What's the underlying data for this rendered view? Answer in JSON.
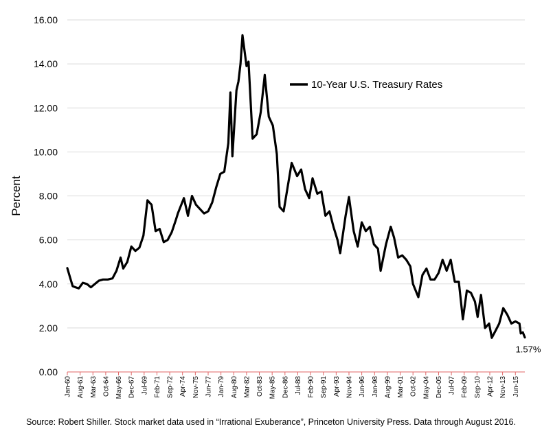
{
  "chart_data": {
    "type": "line",
    "ylabel": "Percent",
    "ylim": [
      0,
      16
    ],
    "y_ticks": [
      "0.00",
      "2.00",
      "4.00",
      "6.00",
      "8.00",
      "10.00",
      "12.00",
      "14.00",
      "16.00"
    ],
    "y_tick_values": [
      0,
      2,
      4,
      6,
      8,
      10,
      12,
      14,
      16
    ],
    "x_range": [
      "1960-01",
      "2016-08"
    ],
    "x_tick_labels": [
      "Jan-60",
      "Aug-61",
      "Mar-63",
      "Oct-64",
      "May-66",
      "Dec-67",
      "Jul-69",
      "Feb-71",
      "Sep-72",
      "Apr-74",
      "Nov-75",
      "Jun-77",
      "Jan-79",
      "Aug-80",
      "Mar-82",
      "Oct-83",
      "May-85",
      "Dec-86",
      "Jul-88",
      "Feb-90",
      "Sep-91",
      "Apr-93",
      "Nov-94",
      "Jun-96",
      "Jan-98",
      "Aug-99",
      "Mar-01",
      "Oct-02",
      "May-04",
      "Dec-05",
      "Jul-07",
      "Feb-09",
      "Sep-10",
      "Apr-12",
      "Nov-13",
      "Jun-15"
    ],
    "x_tick_dates": [
      "1960-01",
      "1961-08",
      "1963-03",
      "1964-10",
      "1966-05",
      "1967-12",
      "1969-07",
      "1971-02",
      "1972-09",
      "1974-04",
      "1975-11",
      "1977-06",
      "1979-01",
      "1980-08",
      "1982-03",
      "1983-10",
      "1985-05",
      "1986-12",
      "1988-07",
      "1990-02",
      "1991-09",
      "1993-04",
      "1994-11",
      "1996-06",
      "1998-01",
      "1999-08",
      "2001-03",
      "2002-10",
      "2004-05",
      "2005-12",
      "2007-07",
      "2009-02",
      "2010-09",
      "2012-04",
      "2013-11",
      "2015-06"
    ],
    "grid": true,
    "legend_position": "top-right",
    "colors": {
      "line": "#000000",
      "x_axis": "#e06666",
      "grid": "#d9d9d9"
    },
    "series": [
      {
        "name": "10-Year U.S. Treasury Rates",
        "x": [
          "1960-01",
          "1960-05",
          "1960-09",
          "1961-01",
          "1961-06",
          "1961-12",
          "1962-06",
          "1962-12",
          "1963-06",
          "1963-12",
          "1964-06",
          "1965-01",
          "1965-08",
          "1966-02",
          "1966-08",
          "1966-12",
          "1967-06",
          "1967-12",
          "1968-06",
          "1968-12",
          "1969-06",
          "1969-12",
          "1970-06",
          "1970-12",
          "1971-06",
          "1971-12",
          "1972-06",
          "1972-12",
          "1973-06",
          "1973-09",
          "1974-06",
          "1974-12",
          "1975-06",
          "1975-12",
          "1976-06",
          "1976-12",
          "1977-06",
          "1977-12",
          "1978-06",
          "1978-12",
          "1979-06",
          "1979-12",
          "1980-03",
          "1980-06",
          "1980-12",
          "1981-03",
          "1981-06",
          "1981-09",
          "1982-03",
          "1982-06",
          "1982-12",
          "1983-06",
          "1983-12",
          "1984-06",
          "1984-12",
          "1985-06",
          "1985-12",
          "1986-04",
          "1986-10",
          "1987-04",
          "1987-10",
          "1988-06",
          "1988-12",
          "1989-06",
          "1989-12",
          "1990-05",
          "1990-12",
          "1991-06",
          "1991-12",
          "1992-06",
          "1992-12",
          "1993-06",
          "1993-10",
          "1994-06",
          "1994-11",
          "1995-06",
          "1995-12",
          "1996-06",
          "1996-12",
          "1997-06",
          "1997-12",
          "1998-06",
          "1998-10",
          "1999-06",
          "2000-01",
          "2000-06",
          "2000-12",
          "2001-06",
          "2001-12",
          "2002-06",
          "2002-10",
          "2003-06",
          "2003-12",
          "2004-06",
          "2004-12",
          "2005-06",
          "2005-12",
          "2006-06",
          "2006-12",
          "2007-06",
          "2007-12",
          "2008-06",
          "2008-12",
          "2009-06",
          "2009-12",
          "2010-06",
          "2010-10",
          "2011-03",
          "2011-09",
          "2012-03",
          "2012-07",
          "2013-01",
          "2013-06",
          "2013-12",
          "2014-06",
          "2014-12",
          "2015-06",
          "2015-12",
          "2016-02",
          "2016-05",
          "2016-08"
        ],
        "y": [
          4.72,
          4.3,
          3.9,
          3.85,
          3.8,
          4.05,
          4.0,
          3.85,
          4.0,
          4.15,
          4.2,
          4.2,
          4.25,
          4.6,
          5.2,
          4.7,
          5.0,
          5.7,
          5.5,
          5.65,
          6.2,
          7.8,
          7.6,
          6.4,
          6.5,
          5.9,
          6.0,
          6.35,
          6.9,
          7.2,
          7.9,
          7.1,
          8.0,
          7.6,
          7.4,
          7.2,
          7.3,
          7.7,
          8.4,
          9.0,
          9.1,
          10.4,
          12.7,
          9.8,
          12.8,
          13.2,
          14.0,
          15.3,
          13.9,
          14.1,
          10.6,
          10.8,
          11.8,
          13.5,
          11.6,
          11.2,
          9.9,
          7.5,
          7.3,
          8.4,
          9.5,
          8.9,
          9.2,
          8.3,
          7.9,
          8.8,
          8.1,
          8.2,
          7.1,
          7.3,
          6.6,
          6.0,
          5.4,
          7.1,
          7.95,
          6.4,
          5.7,
          6.8,
          6.4,
          6.6,
          5.8,
          5.6,
          4.6,
          5.8,
          6.6,
          6.1,
          5.2,
          5.3,
          5.1,
          4.8,
          4.0,
          3.4,
          4.4,
          4.7,
          4.2,
          4.2,
          4.5,
          5.1,
          4.6,
          5.1,
          4.1,
          4.1,
          2.4,
          3.7,
          3.6,
          3.2,
          2.5,
          3.5,
          2.0,
          2.2,
          1.55,
          1.9,
          2.2,
          2.9,
          2.6,
          2.2,
          2.3,
          2.2,
          1.75,
          1.8,
          1.57
        ]
      }
    ],
    "annotation": {
      "text": "1.57%",
      "x": "2016-08",
      "y": 1.57
    }
  },
  "source_note": "Source: Robert Shiller. Stock market data used in “Irrational Exuberance”, Princeton University Press. Data through August 2016."
}
